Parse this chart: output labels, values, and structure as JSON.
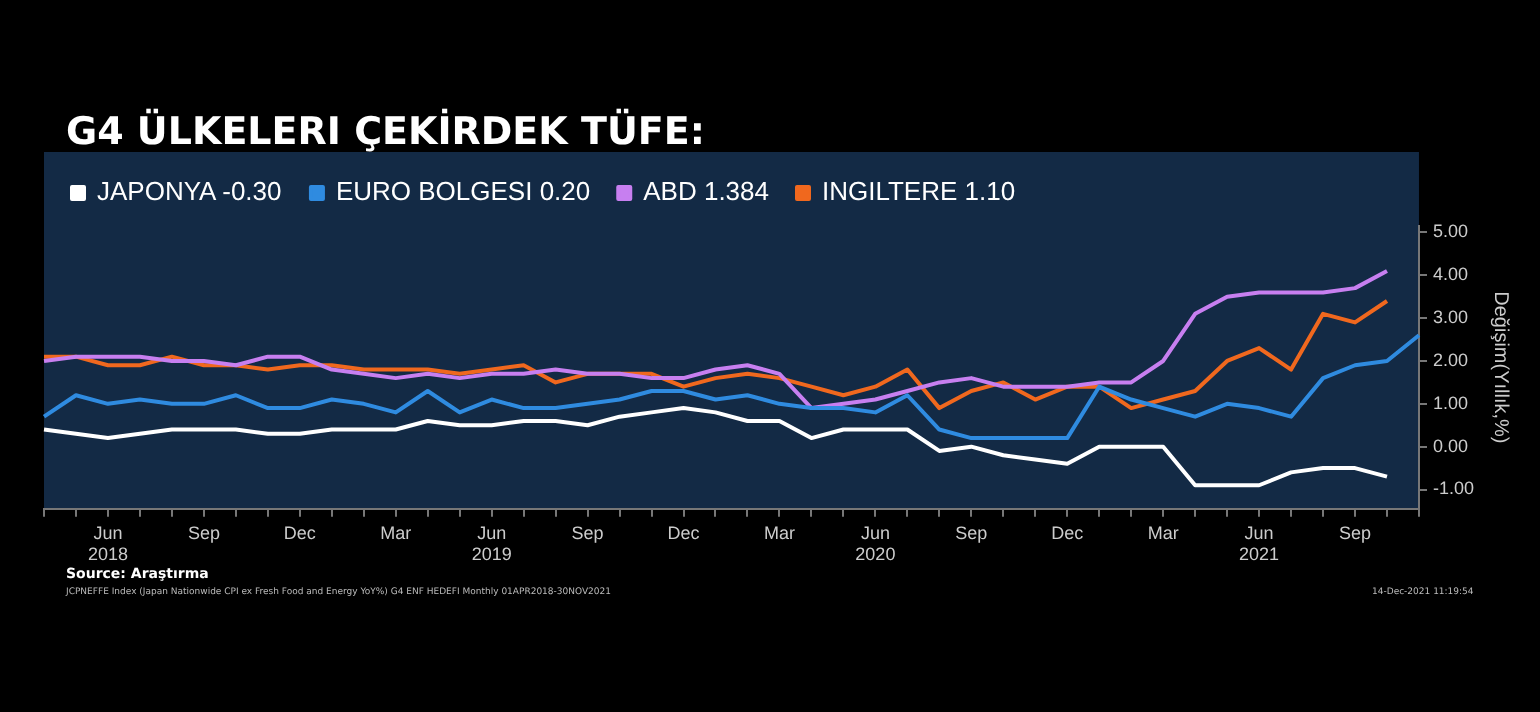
{
  "chart_data": {
    "type": "line",
    "title": "G4 ÜLKELERI ÇEKİRDEK TÜFE:",
    "categories": [
      null,
      null,
      "Jun\n2018",
      null,
      null,
      "Sep",
      null,
      null,
      "Dec",
      null,
      null,
      "Mar",
      null,
      null,
      "Jun\n2019",
      null,
      null,
      "Sep",
      null,
      null,
      "Dec",
      null,
      null,
      "Mar",
      null,
      null,
      "Jun\n2020",
      null,
      null,
      "Sep",
      null,
      null,
      "Dec",
      null,
      null,
      "Mar",
      null,
      null,
      "Jun\n2021",
      null,
      null,
      "Sep",
      null,
      null
    ],
    "series": [
      {
        "name": "JAPONYA -0.30",
        "color": "#ffffff",
        "values": [
          0.4,
          0.3,
          0.2,
          0.3,
          0.4,
          0.4,
          0.4,
          0.3,
          0.3,
          0.4,
          0.4,
          0.4,
          0.6,
          0.5,
          0.5,
          0.6,
          0.6,
          0.5,
          0.7,
          0.8,
          0.9,
          0.8,
          0.6,
          0.6,
          0.2,
          0.4,
          0.4,
          0.4,
          -0.1,
          0.0,
          -0.2,
          -0.3,
          -0.4,
          0.0,
          0.0,
          0.0,
          -0.9,
          -0.9,
          -0.9,
          -0.6,
          -0.5,
          -0.5,
          -0.7,
          null
        ]
      },
      {
        "name": "EURO BOLGESI 0.20",
        "color": "#2f8be0",
        "values": [
          0.7,
          1.2,
          1.0,
          1.1,
          1.0,
          1.0,
          1.2,
          0.9,
          0.9,
          1.1,
          1.0,
          0.8,
          1.3,
          0.8,
          1.1,
          0.9,
          0.9,
          1.0,
          1.1,
          1.3,
          1.3,
          1.1,
          1.2,
          1.0,
          0.9,
          0.9,
          0.8,
          1.2,
          0.4,
          0.2,
          0.2,
          0.2,
          0.2,
          1.4,
          1.1,
          0.9,
          0.7,
          1.0,
          0.9,
          0.7,
          1.6,
          1.9,
          2.0,
          2.6
        ]
      },
      {
        "name": "ABD 1.384",
        "color": "#c77ff0",
        "values": [
          2.0,
          2.1,
          2.1,
          2.1,
          2.0,
          2.0,
          1.9,
          2.1,
          2.1,
          1.8,
          1.7,
          1.6,
          1.7,
          1.6,
          1.7,
          1.7,
          1.8,
          1.7,
          1.7,
          1.6,
          1.6,
          1.8,
          1.9,
          1.7,
          0.9,
          1.0,
          1.1,
          1.3,
          1.5,
          1.6,
          1.4,
          1.4,
          1.4,
          1.5,
          1.5,
          2.0,
          3.1,
          3.5,
          3.6,
          3.6,
          3.6,
          3.7,
          4.1,
          null
        ]
      },
      {
        "name": "INGILTERE 1.10",
        "color": "#f0681e",
        "values": [
          2.1,
          2.1,
          1.9,
          1.9,
          2.1,
          1.9,
          1.9,
          1.8,
          1.9,
          1.9,
          1.8,
          1.8,
          1.8,
          1.7,
          1.8,
          1.9,
          1.5,
          1.7,
          1.7,
          1.7,
          1.4,
          1.6,
          1.7,
          1.6,
          1.4,
          1.2,
          1.4,
          1.8,
          0.9,
          1.3,
          1.5,
          1.1,
          1.4,
          1.4,
          0.9,
          1.1,
          1.3,
          2.0,
          2.3,
          1.8,
          3.1,
          2.9,
          3.4,
          null
        ]
      }
    ],
    "ylabel": "Değişim(Yıllık,%)",
    "ylim": [
      -1.45,
      5.15
    ],
    "yticks": [
      {
        "value": -1,
        "label": "-1.00"
      },
      {
        "value": 0,
        "label": "0.00"
      },
      {
        "value": 1,
        "label": "1.00"
      },
      {
        "value": 2,
        "label": "2.00"
      },
      {
        "value": 3,
        "label": "3.00"
      },
      {
        "value": 4,
        "label": "4.00"
      },
      {
        "value": 5,
        "label": "5.00"
      }
    ],
    "grid": false,
    "legend": "top left",
    "marker": "none",
    "line_style": "solid",
    "annotations": [
      "Source: Araştırma",
      "JCPNEFFE Index (Japan Nationwide CPI ex Fresh Food and Energy YoY%) G4 ENF HEDEFI Monthly 01APR2018-30NOV2021",
      "14-Dec-2021 11:19:54"
    ]
  }
}
